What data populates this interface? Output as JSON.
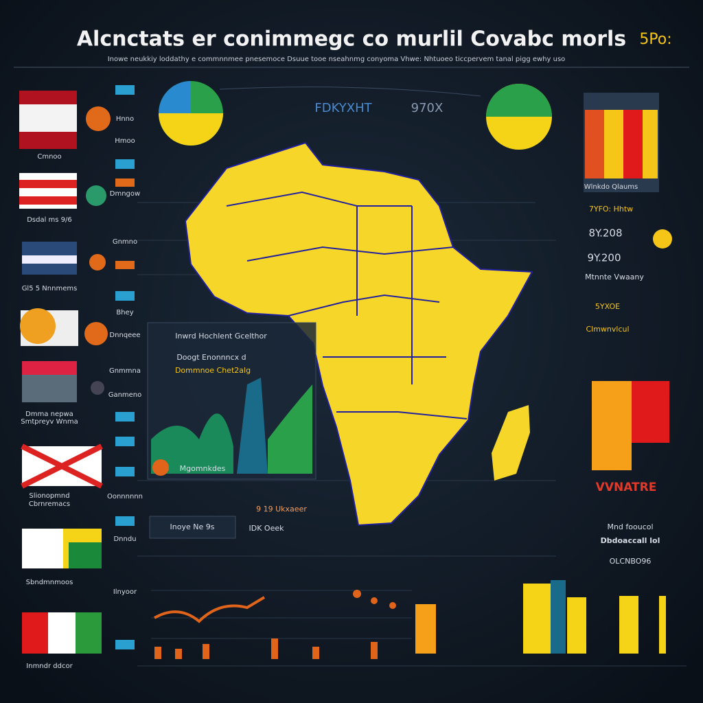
{
  "header": {
    "title": "Alcnctats er conimmegc co murlil Covabc morls",
    "subtitle": "Inowe neukkiy loddathy e commnnmee pnesemoce Dsuue tooe nseahnmg conyoma Vhwe: Nhtuoeo ticcpervem tanal pigg ewhy uso",
    "badge": "5Po:"
  },
  "left_labels": [
    "Cmnoo",
    "Dsdal ms 9/6",
    "Gl5 5 Nnnmems",
    "Dmma nepwa",
    "Smtpreyv Wnma",
    "Slionopmnd",
    "Cbrnremacs",
    "Sbndmnmoos",
    "Inmndr ddcor"
  ],
  "left_mid_labels": [
    "Hnno",
    "Hmoo",
    "Dmngow",
    "Gnmno",
    "Bhey",
    "Dnnqeee",
    "Gnmmna",
    "Ganmeno",
    "Oonnnnnn",
    "Dnndu",
    "Ilnyoor"
  ],
  "map": {
    "label_left": "FDKYXHT",
    "label_right": "970X"
  },
  "panel": {
    "title": "Inwrd Hochlent Gcelthor",
    "subtitle": "Doogt Enonnncx d",
    "highlight": "Dommnoe Chet2alg",
    "legend": "Mgomnkdes"
  },
  "footer_labels": [
    "Inoye Ne 9s",
    "IDK Oeek",
    "9 19 Ukxaeer"
  ],
  "right": {
    "legend_top": "Wlnkdo Qlaums",
    "items": [
      "7YFO: Hhtw",
      "8Y.208",
      "9Y.200",
      "Mtnnte Vwaany",
      "5YXOE",
      "Clmwnvlcul"
    ],
    "alert": "VVNATRE",
    "notes": [
      "Mnd fooucol",
      "Dbdoaccall lol",
      "OLCNBO96"
    ]
  }
}
